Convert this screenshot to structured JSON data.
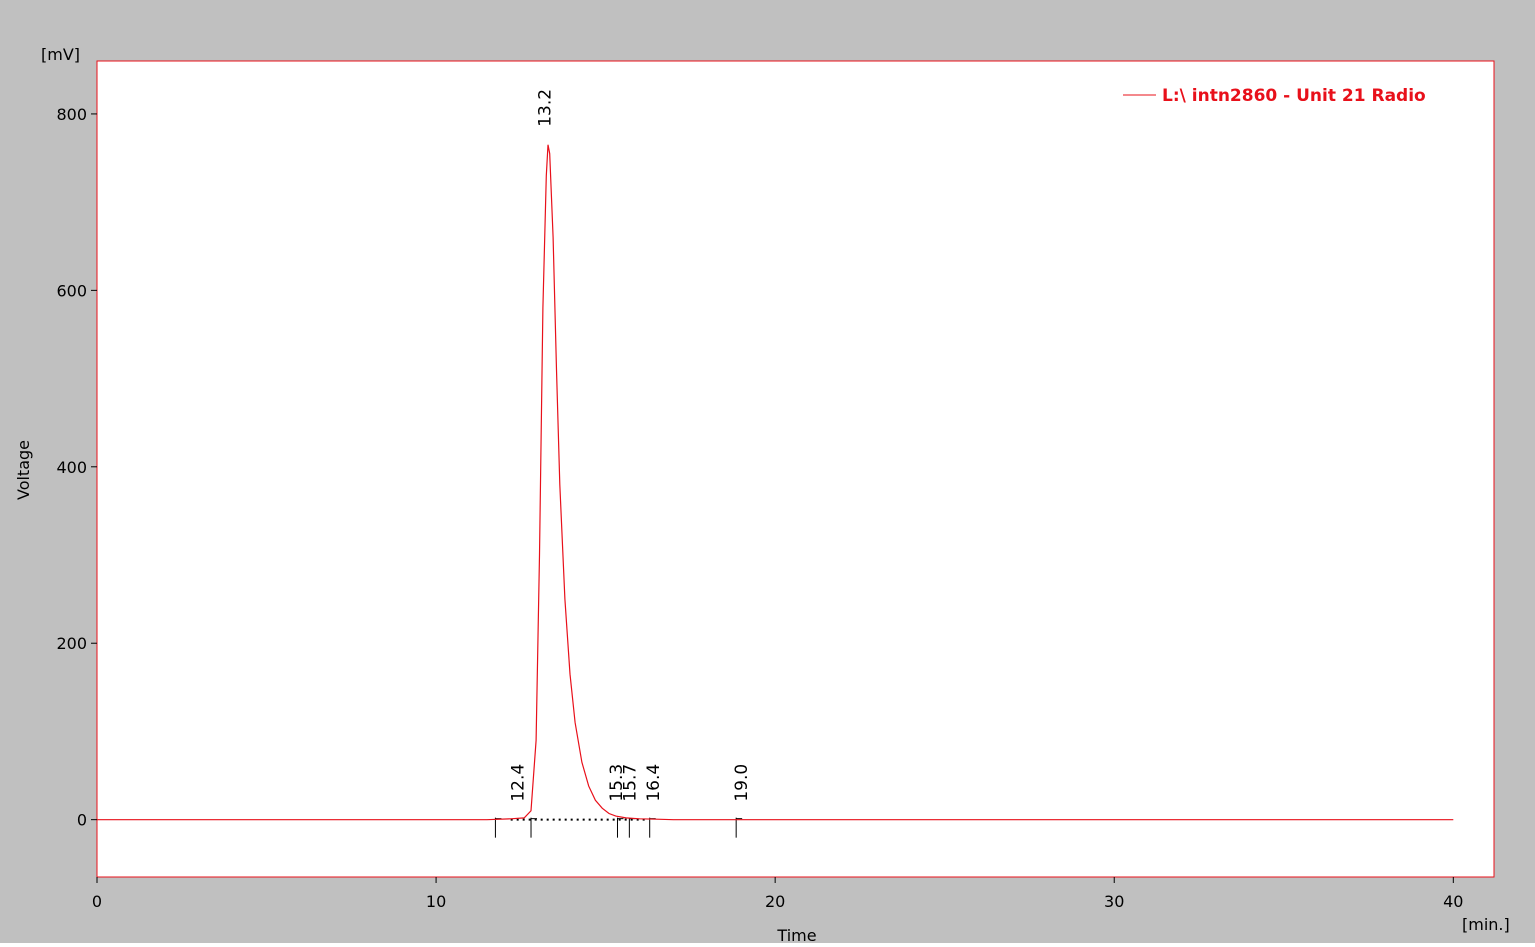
{
  "chart_data": {
    "type": "line",
    "title": "",
    "xlabel": "Time",
    "ylabel": "Voltage",
    "x_unit": "[min.]",
    "y_unit": "[mV]",
    "xlim": [
      0,
      41.2
    ],
    "ylim": [
      -65,
      860
    ],
    "xticks": [
      0,
      10,
      20,
      30,
      40
    ],
    "yticks": [
      0,
      200,
      400,
      600,
      800
    ],
    "grid": false,
    "legend_position": "top-right",
    "series": [
      {
        "name": "L:\\ intn2860 - Unit 21 Radio",
        "color": "#e8101a",
        "x": [
          0,
          5,
          10,
          11.5,
          12.2,
          12.6,
          12.8,
          12.95,
          13.05,
          13.15,
          13.25,
          13.3,
          13.35,
          13.45,
          13.55,
          13.65,
          13.8,
          13.95,
          14.1,
          14.3,
          14.5,
          14.7,
          14.9,
          15.1,
          15.3,
          15.6,
          16.0,
          16.5,
          17,
          19,
          25,
          30,
          35,
          40
        ],
        "y": [
          0,
          0,
          0,
          0,
          1,
          2,
          10,
          90,
          300,
          580,
          730,
          765,
          755,
          660,
          510,
          380,
          250,
          165,
          110,
          65,
          38,
          22,
          13,
          7,
          4,
          2,
          1,
          0.5,
          0,
          0,
          0,
          0,
          0,
          0
        ]
      }
    ]
  },
  "peak_labels": [
    {
      "label": "13.2",
      "x": 13.2,
      "y": 765
    },
    {
      "label": "12.4",
      "x": 12.4,
      "y": 0
    },
    {
      "label": "15.3",
      "x": 15.3,
      "y": 0
    },
    {
      "label": "15.7",
      "x": 15.7,
      "y": 0
    },
    {
      "label": "16.4",
      "x": 16.4,
      "y": 0
    },
    {
      "label": "19.0",
      "x": 19.0,
      "y": 0
    }
  ],
  "integration_markers": [
    11.75,
    12.8,
    15.35,
    15.7,
    16.3,
    18.85
  ],
  "baseline_segment": [
    12.2,
    16.2
  ],
  "colors": {
    "frame_background": "#c0c0c0",
    "plot_background": "#ffffff",
    "plot_border": "#e8101a",
    "axis": "#000000"
  }
}
